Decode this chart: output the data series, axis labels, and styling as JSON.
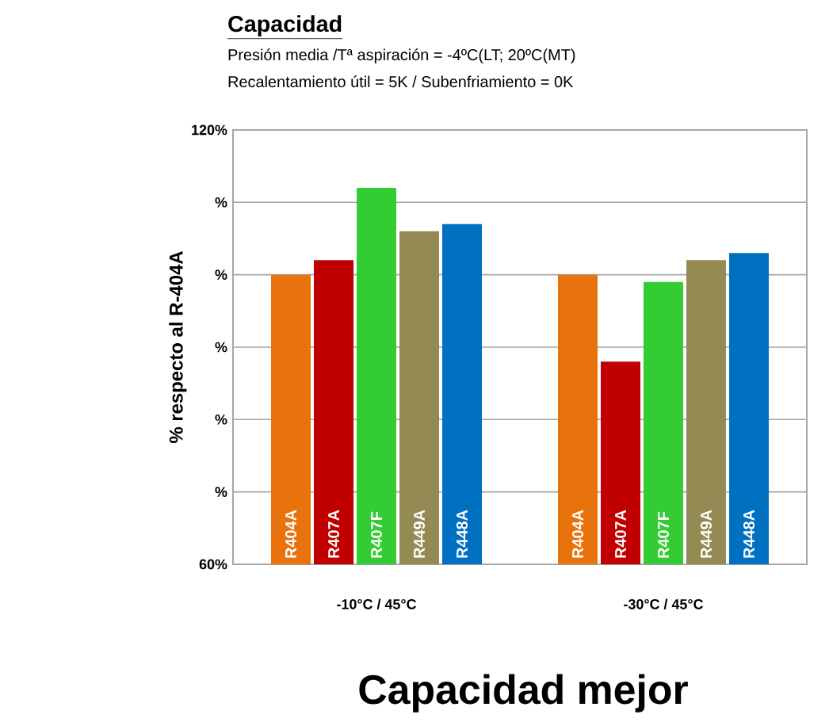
{
  "chart_data": {
    "type": "bar",
    "title": "Capacidad",
    "subtitle": "Presión media /Tª aspiración = -4ºC(LT; 20ºC(MT)",
    "annotations": [
      "Recalentamiento útil = 5K / Subenfriamiento = 0K",
      "Capacidad mejor"
    ],
    "ylabel": "% respecto al R-404A",
    "categories": [
      "-10°C / 45°C",
      "-30°C / 45°C"
    ],
    "series": [
      {
        "name": "R404A",
        "color": "#e8720c",
        "values": [
          100,
          100
        ]
      },
      {
        "name": "R407A",
        "color": "#c00000",
        "values": [
          102,
          88
        ]
      },
      {
        "name": "R407F",
        "color": "#33cc33",
        "values": [
          112,
          99
        ]
      },
      {
        "name": "R449A",
        "color": "#948a54",
        "values": [
          106,
          102
        ]
      },
      {
        "name": "R448A",
        "color": "#0070c0",
        "values": [
          107,
          103
        ]
      }
    ],
    "ylim": [
      60,
      120
    ],
    "yticks": [
      {
        "value": 60,
        "label": "60%"
      },
      {
        "value": 70,
        "label": "%"
      },
      {
        "value": 80,
        "label": "%"
      },
      {
        "value": 90,
        "label": "%"
      },
      {
        "value": 100,
        "label": "%"
      },
      {
        "value": 110,
        "label": "%"
      },
      {
        "value": 120,
        "label": "120%"
      }
    ],
    "grid": "y"
  }
}
